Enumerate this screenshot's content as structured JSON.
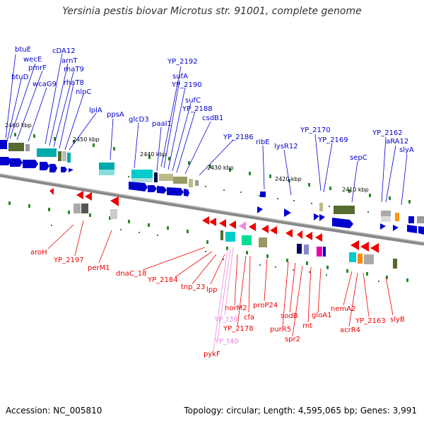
{
  "title": "Yersinia pestis biovar Microtus str. 91001, complete genome",
  "footer": {
    "accession": "Accession: NC_005810",
    "summary": "Topology: circular; Length: 4,595,065 bp; Genes: 3,991"
  },
  "ticks": [
    "2460 kbp",
    "2450 kbp",
    "2440 kbp",
    "2430 kbp",
    "2420 kbp",
    "2410 kbp"
  ],
  "top_labels": [
    "btuE",
    "wecE",
    "btuD",
    "pmrF",
    "wcaG9",
    "cDA12",
    "arnT",
    "rhaT9",
    "rhaT8",
    "nlpC",
    "lplA",
    "ppsA",
    "glcD3",
    "paaI1",
    "YP_2192",
    "sufA",
    "YP_2190",
    "sufC",
    "YP_2188",
    "csdB1",
    "YP_2186",
    "ribE",
    "lysR12",
    "YP_2170",
    "YP_2169",
    "sepC",
    "YP_2162",
    "aRA12",
    "slyA"
  ],
  "bottom_labels": [
    "aroH",
    "YP_2197",
    "perM1",
    "dnaC_18",
    "YP_2184",
    "tnp_23",
    "lpp",
    "norM2",
    "YP_t39",
    "YP_2178",
    "cfa",
    "proP24",
    "YP_t40",
    "pykF",
    "purR5",
    "sodB",
    "spr2",
    "rnt",
    "gloA1",
    "nemA2",
    "acrR4",
    "YP_2163",
    "slyB"
  ],
  "colors": {
    "plus_strand": "#0000cc",
    "minus_strand": "#cc0000",
    "trna": "#ee88dd",
    "backbone": "#777777",
    "tick_mark": "#2a8a2a"
  }
}
